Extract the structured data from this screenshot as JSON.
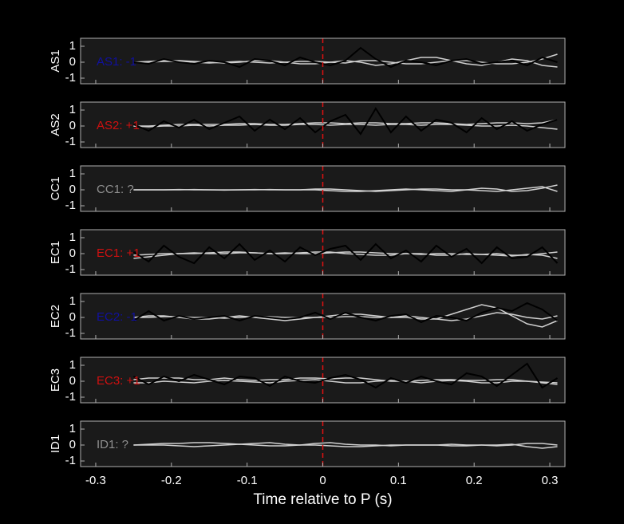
{
  "chart_data": [
    {
      "type": "line",
      "ylabel": "AS1",
      "annotation": "AS1: -1",
      "annotation_color": "#1010a0",
      "ylim": [
        -1.35,
        1.5
      ],
      "yticks": [
        -1,
        0,
        1
      ],
      "vline": 0,
      "x": [
        -0.25,
        -0.23,
        -0.21,
        -0.19,
        -0.17,
        -0.15,
        -0.13,
        -0.11,
        -0.09,
        -0.07,
        -0.05,
        -0.03,
        -0.01,
        0.01,
        0.03,
        0.05,
        0.07,
        0.09,
        0.11,
        0.13,
        0.15,
        0.17,
        0.19,
        0.21,
        0.23,
        0.25,
        0.27,
        0.29,
        0.31
      ],
      "series": [
        {
          "color": "#d0d0d0",
          "values": [
            0,
            0.05,
            0.1,
            0.1,
            0.05,
            0,
            -0.05,
            0,
            0.1,
            0.1,
            0,
            -0.1,
            -0.1,
            0,
            0.1,
            0,
            -0.2,
            -0.1,
            0.1,
            0.3,
            0.3,
            0.1,
            -0.1,
            -0.2,
            0,
            0.2,
            0.1,
            -0.2,
            -0.3
          ]
        },
        {
          "color": "#d0d0d0",
          "values": [
            0,
            0,
            0.05,
            0.05,
            0,
            -0.05,
            0,
            0.05,
            0,
            -0.05,
            0,
            0.05,
            0.05,
            0,
            -0.05,
            0.1,
            0.1,
            0,
            -0.1,
            -0.1,
            0,
            0.1,
            0.1,
            0,
            -0.1,
            -0.1,
            0,
            0.2,
            0.5
          ]
        },
        {
          "color": "#000000",
          "values": [
            0,
            -0.1,
            0.2,
            0,
            -0.1,
            0.1,
            0,
            -0.3,
            0.2,
            0.1,
            -0.2,
            0.3,
            0,
            -0.2,
            0.1,
            0.9,
            0.2,
            -0.3,
            0.1,
            0,
            -0.2,
            0.1,
            0.2,
            -0.1,
            0,
            0.1,
            -0.2,
            0.3,
            0
          ]
        }
      ]
    },
    {
      "type": "line",
      "ylabel": "AS2",
      "annotation": "AS2: +1",
      "annotation_color": "#d01010",
      "ylim": [
        -1.35,
        1.5
      ],
      "yticks": [
        -1,
        0,
        1
      ],
      "vline": 0,
      "x": [
        -0.25,
        -0.23,
        -0.21,
        -0.19,
        -0.17,
        -0.15,
        -0.13,
        -0.11,
        -0.09,
        -0.07,
        -0.05,
        -0.03,
        -0.01,
        0.01,
        0.03,
        0.05,
        0.07,
        0.09,
        0.11,
        0.13,
        0.15,
        0.17,
        0.19,
        0.21,
        0.23,
        0.25,
        0.27,
        0.29,
        0.31
      ],
      "series": [
        {
          "color": "#d0d0d0",
          "values": [
            0,
            0,
            0.05,
            0.1,
            0.1,
            0.1,
            0.1,
            0.15,
            0.15,
            0.1,
            0.1,
            0.15,
            0.2,
            0.2,
            0.15,
            0.2,
            0.2,
            0.15,
            0.15,
            0.2,
            0.2,
            0.15,
            0.1,
            0.15,
            0.2,
            0.2,
            0.15,
            0.2,
            0.4
          ]
        },
        {
          "color": "#d0d0d0",
          "values": [
            0,
            -0.05,
            0,
            0,
            0.05,
            0,
            0.05,
            0.05,
            0.1,
            0.05,
            0.05,
            0.1,
            0.1,
            0.05,
            0.1,
            0.1,
            0.05,
            0.1,
            0.1,
            0.05,
            0.1,
            0.1,
            0.05,
            0,
            0,
            0.05,
            0,
            -0.1,
            -0.2
          ]
        },
        {
          "color": "#000000",
          "values": [
            0.1,
            -0.3,
            0.3,
            -0.1,
            0.4,
            -0.2,
            0.2,
            0.6,
            -0.3,
            0.4,
            -0.2,
            0.5,
            -0.4,
            0.3,
            0.7,
            -0.5,
            1.1,
            -0.4,
            0.6,
            -0.3,
            0.4,
            0.2,
            -0.4,
            0.5,
            -0.2,
            0.3,
            -0.3,
            0.1,
            0.4
          ]
        }
      ]
    },
    {
      "type": "line",
      "ylabel": "CC1",
      "annotation": "CC1: ?",
      "annotation_color": "#909090",
      "ylim": [
        -1.35,
        1.5
      ],
      "yticks": [
        -1,
        0,
        1
      ],
      "vline": 0,
      "x": [
        -0.25,
        -0.23,
        -0.21,
        -0.19,
        -0.17,
        -0.15,
        -0.13,
        -0.11,
        -0.09,
        -0.07,
        -0.05,
        -0.03,
        -0.01,
        0.01,
        0.03,
        0.05,
        0.07,
        0.09,
        0.11,
        0.13,
        0.15,
        0.17,
        0.19,
        0.21,
        0.23,
        0.25,
        0.27,
        0.29,
        0.31
      ],
      "series": [
        {
          "color": "#d0d0d0",
          "values": [
            0,
            0,
            0,
            0,
            0.02,
            0,
            0,
            0,
            0.02,
            0,
            0,
            0,
            0,
            -0.05,
            -0.1,
            -0.1,
            -0.05,
            0,
            0.05,
            0,
            -0.05,
            -0.1,
            0,
            0.1,
            0.05,
            -0.1,
            -0.05,
            0.1,
            0.3
          ]
        },
        {
          "color": "#d0d0d0",
          "values": [
            0,
            0,
            0,
            0.02,
            0,
            0,
            -0.02,
            0,
            0,
            0.02,
            0,
            0,
            0.05,
            0.05,
            0,
            -0.05,
            -0.1,
            -0.05,
            0,
            0.05,
            0.05,
            0,
            0,
            -0.05,
            -0.1,
            0,
            0.1,
            0.2,
            -0.1
          ]
        }
      ]
    },
    {
      "type": "line",
      "ylabel": "EC1",
      "annotation": "EC1: +1",
      "annotation_color": "#d01010",
      "ylim": [
        -1.35,
        1.5
      ],
      "yticks": [
        -1,
        0,
        1
      ],
      "vline": 0,
      "x": [
        -0.25,
        -0.23,
        -0.21,
        -0.19,
        -0.17,
        -0.15,
        -0.13,
        -0.11,
        -0.09,
        -0.07,
        -0.05,
        -0.03,
        -0.01,
        0.01,
        0.03,
        0.05,
        0.07,
        0.09,
        0.11,
        0.13,
        0.15,
        0.17,
        0.19,
        0.21,
        0.23,
        0.25,
        0.27,
        0.29,
        0.31
      ],
      "series": [
        {
          "color": "#d0d0d0",
          "values": [
            -0.3,
            -0.2,
            -0.1,
            0,
            0,
            0.05,
            0.1,
            0.1,
            0.05,
            0,
            0,
            0.05,
            0.1,
            0.1,
            0,
            -0.05,
            -0.1,
            -0.1,
            0,
            0,
            -0.1,
            -0.1,
            0,
            -0.05,
            -0.1,
            -0.15,
            -0.05,
            -0.1,
            -0.3
          ]
        },
        {
          "color": "#d0d0d0",
          "values": [
            -0.1,
            -0.05,
            0,
            0,
            0.05,
            0,
            0,
            0.05,
            0.05,
            0,
            0.05,
            0,
            0,
            0.05,
            0.1,
            0.1,
            0.05,
            0,
            0,
            -0.05,
            0,
            0,
            -0.05,
            -0.05,
            0,
            -0.1,
            -0.1,
            0,
            0.1
          ]
        },
        {
          "color": "#000000",
          "values": [
            0.1,
            -0.5,
            0.5,
            -0.2,
            -0.6,
            0.4,
            -0.3,
            0.6,
            -0.4,
            0.2,
            -0.5,
            0.4,
            -0.1,
            0.3,
            0.5,
            -0.4,
            0.6,
            -0.3,
            0.2,
            -0.5,
            0.5,
            -0.2,
            0.3,
            -0.6,
            0.4,
            -0.3,
            -0.2,
            0.4,
            -0.6
          ]
        }
      ]
    },
    {
      "type": "line",
      "ylabel": "EC2",
      "annotation": "EC2: -1",
      "annotation_color": "#1010a0",
      "ylim": [
        -1.35,
        1.5
      ],
      "yticks": [
        -1,
        0,
        1
      ],
      "vline": 0,
      "x": [
        -0.25,
        -0.23,
        -0.21,
        -0.19,
        -0.17,
        -0.15,
        -0.13,
        -0.11,
        -0.09,
        -0.07,
        -0.05,
        -0.03,
        -0.01,
        0.01,
        0.03,
        0.05,
        0.07,
        0.09,
        0.11,
        0.13,
        0.15,
        0.17,
        0.19,
        0.21,
        0.23,
        0.25,
        0.27,
        0.29,
        0.31
      ],
      "series": [
        {
          "color": "#d0d0d0",
          "values": [
            0,
            0.1,
            0.1,
            0,
            -0.1,
            -0.1,
            0,
            0.1,
            0,
            -0.1,
            -0.2,
            -0.1,
            0,
            0.1,
            0.2,
            0.2,
            0.1,
            0,
            0,
            -0.1,
            -0.1,
            0.2,
            0.5,
            0.8,
            0.6,
            0.1,
            -0.4,
            -0.6,
            -0.2
          ]
        },
        {
          "color": "#d0d0d0",
          "values": [
            0,
            0,
            0.05,
            0.05,
            0,
            0,
            -0.05,
            0,
            0.05,
            0.05,
            0,
            0,
            0,
            0,
            0.05,
            0.05,
            0,
            0,
            0.1,
            0,
            -0.1,
            -0.2,
            -0.1,
            0.1,
            0.3,
            0.2,
            0,
            -0.1,
            0.1
          ]
        },
        {
          "color": "#000000",
          "values": [
            -0.2,
            0.4,
            -0.2,
            0.1,
            -0.1,
            0,
            0.1,
            -0.2,
            0.1,
            0,
            -0.1,
            0,
            0.3,
            -0.1,
            0.3,
            0,
            -0.2,
            0.1,
            0.2,
            -0.3,
            0.1,
            0,
            -0.2,
            0.3,
            0.6,
            0.4,
            0.9,
            0.5,
            -0.2
          ]
        }
      ]
    },
    {
      "type": "line",
      "ylabel": "EC3",
      "annotation": "EC3: +1",
      "annotation_color": "#d01010",
      "ylim": [
        -1.35,
        1.5
      ],
      "yticks": [
        -1,
        0,
        1
      ],
      "vline": 0,
      "x": [
        -0.25,
        -0.23,
        -0.21,
        -0.19,
        -0.17,
        -0.15,
        -0.13,
        -0.11,
        -0.09,
        -0.07,
        -0.05,
        -0.03,
        -0.01,
        0.01,
        0.03,
        0.05,
        0.07,
        0.09,
        0.11,
        0.13,
        0.15,
        0.17,
        0.19,
        0.21,
        0.23,
        0.25,
        0.27,
        0.29,
        0.31
      ],
      "series": [
        {
          "color": "#d0d0d0",
          "values": [
            0.1,
            0.2,
            0.2,
            0.2,
            0.1,
            0.1,
            0.2,
            0.1,
            0.05,
            0.1,
            0.1,
            0.2,
            0.2,
            0.15,
            0.2,
            0.2,
            0.1,
            0,
            0,
            0.05,
            0.1,
            0.1,
            0.05,
            0.05,
            0.1,
            0.1,
            0,
            -0.05,
            -0.1
          ]
        },
        {
          "color": "#d0d0d0",
          "values": [
            -0.1,
            -0.1,
            0,
            -0.05,
            -0.1,
            0,
            0.05,
            0,
            -0.05,
            -0.1,
            0,
            0.05,
            0.1,
            0,
            -0.1,
            -0.1,
            0,
            0.05,
            0,
            -0.1,
            0,
            0.05,
            0,
            -0.1,
            -0.1,
            0,
            0,
            -0.1,
            -0.2
          ]
        },
        {
          "color": "#000000",
          "values": [
            0.3,
            -0.2,
            0.3,
            0,
            0.4,
            0.1,
            -0.2,
            0.3,
            0.2,
            -0.3,
            0.3,
            0,
            -0.1,
            0.2,
            0.4,
            0.1,
            -0.4,
            0.2,
            -0.1,
            0.3,
            0,
            -0.2,
            0.5,
            0.3,
            -0.3,
            0.4,
            1.1,
            -0.4,
            0.2
          ]
        }
      ]
    },
    {
      "type": "line",
      "ylabel": "ID1",
      "annotation": "ID1: ?",
      "annotation_color": "#909090",
      "ylim": [
        -1.35,
        1.5
      ],
      "yticks": [
        -1,
        0,
        1
      ],
      "vline": 0,
      "xlabel": "Time relative to P (s)",
      "xlim": [
        -0.32,
        0.32
      ],
      "xticks": [
        -0.3,
        -0.2,
        -0.1,
        0,
        0.1,
        0.2,
        0.3
      ],
      "x": [
        -0.25,
        -0.23,
        -0.21,
        -0.19,
        -0.17,
        -0.15,
        -0.13,
        -0.11,
        -0.09,
        -0.07,
        -0.05,
        -0.03,
        -0.01,
        0.01,
        0.03,
        0.05,
        0.07,
        0.09,
        0.11,
        0.13,
        0.15,
        0.17,
        0.19,
        0.21,
        0.23,
        0.25,
        0.27,
        0.29,
        0.31
      ],
      "series": [
        {
          "color": "#d0d0d0",
          "values": [
            0,
            0.05,
            0.1,
            0.1,
            0.15,
            0.15,
            0.1,
            0.05,
            0.1,
            0.15,
            0.05,
            0,
            0.1,
            0.15,
            0.05,
            0,
            0,
            -0.05,
            0,
            0,
            0,
            0.05,
            0,
            0,
            -0.05,
            0,
            0.1,
            0.1,
            0
          ]
        },
        {
          "color": "#d0d0d0",
          "values": [
            0,
            0,
            0,
            -0.05,
            -0.1,
            -0.05,
            0,
            0.05,
            0,
            -0.05,
            -0.05,
            0,
            0,
            -0.05,
            -0.1,
            -0.1,
            -0.05,
            0,
            0,
            0,
            0,
            -0.05,
            -0.05,
            0,
            0,
            0.05,
            -0.1,
            -0.2,
            -0.1
          ]
        }
      ]
    }
  ]
}
